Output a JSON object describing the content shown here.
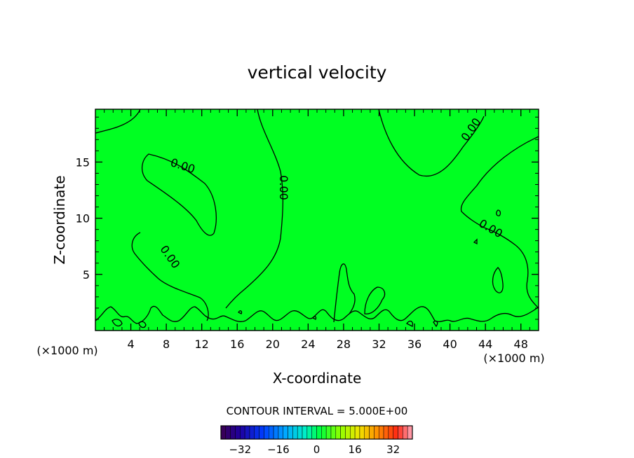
{
  "chart_data": {
    "type": "contour",
    "title": "vertical velocity",
    "xlabel": "X-coordinate",
    "ylabel": "Z-coordinate",
    "x_unit_note": "(×1000 m)",
    "y_unit_note": "(×1000 m)",
    "xlim": [
      0,
      50
    ],
    "ylim": [
      0,
      19.7
    ],
    "x_ticks": [
      4,
      8,
      12,
      16,
      20,
      24,
      28,
      32,
      36,
      40,
      44,
      48
    ],
    "y_ticks": [
      5,
      10,
      15
    ],
    "contour_interval_text": "CONTOUR INTERVAL = 5.000E+00",
    "contour_labels": [
      "0.00",
      "0.00",
      "0.00",
      "0.00",
      "0.00"
    ],
    "colorbar": {
      "range": [
        -40,
        40
      ],
      "ticks": [
        -32,
        -16,
        0,
        16,
        32
      ],
      "tick_labels": [
        "−32",
        "−16",
        "0",
        "16",
        "32"
      ]
    },
    "fill_color": "#00ff22",
    "line_color": "#000000"
  }
}
